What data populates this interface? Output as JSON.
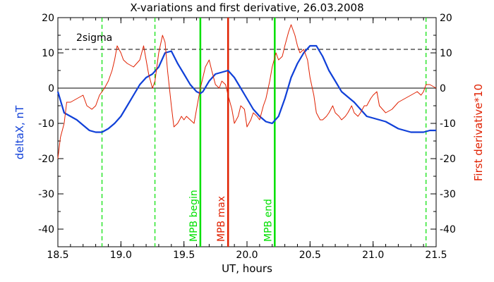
{
  "chart_data": {
    "type": "line",
    "title": "X-variations and first derivative, 26.03.2008",
    "xlabel": "UT, hours",
    "ylabel_left": "deltaX, nT",
    "ylabel_right": "First derivative*10",
    "xlim": [
      18.5,
      21.5
    ],
    "ylim_left": [
      -45,
      20
    ],
    "ylim_right": [
      -45,
      20
    ],
    "x_ticks": [
      "18.5",
      "19.0",
      "19.5",
      "20.0",
      "20.5",
      "21.0",
      "21.5"
    ],
    "y_ticks_left": [
      "20",
      "10",
      "0",
      "-10",
      "-20",
      "-30",
      "-40"
    ],
    "y_ticks_right": [
      "20",
      "10",
      "0",
      "-10",
      "-20",
      "-30",
      "-40"
    ],
    "x_tick_values": [
      18.5,
      19.0,
      19.5,
      20.0,
      20.5,
      21.0,
      21.5
    ],
    "y_tick_values": [
      20,
      10,
      0,
      -10,
      -20,
      -30,
      -40
    ],
    "colors": {
      "deltaX": "#1040d8",
      "derivative": "#e02000",
      "mpb_begin_end": "#00e000",
      "mpb_max": "#e02000",
      "dashed_green": "#00e000",
      "axes": "#000000"
    },
    "threshold": {
      "label": "2sigma",
      "value": 11
    },
    "zero_line": 0,
    "series": [
      {
        "key": "deltaX",
        "x": [
          18.5,
          18.55,
          18.6,
          18.65,
          18.7,
          18.75,
          18.8,
          18.85,
          18.9,
          18.95,
          19.0,
          19.05,
          19.1,
          19.15,
          19.2,
          19.25,
          19.3,
          19.35,
          19.4,
          19.45,
          19.5,
          19.55,
          19.6,
          19.63,
          19.65,
          19.7,
          19.75,
          19.8,
          19.85,
          19.9,
          19.95,
          20.0,
          20.05,
          20.1,
          20.15,
          20.2,
          20.25,
          20.3,
          20.35,
          20.4,
          20.45,
          20.5,
          20.55,
          20.6,
          20.65,
          20.7,
          20.75,
          20.8,
          20.85,
          20.9,
          20.95,
          21.0,
          21.05,
          21.1,
          21.15,
          21.2,
          21.25,
          21.3,
          21.35,
          21.4,
          21.45,
          21.5
        ],
        "y": [
          -1,
          -7,
          -8,
          -9,
          -10.5,
          -12,
          -12.5,
          -12.5,
          -11.5,
          -10,
          -8,
          -5,
          -2,
          1,
          3,
          4,
          6,
          10,
          10.5,
          7,
          4,
          1,
          -1,
          -1.5,
          -1,
          2,
          4,
          4.5,
          5,
          3,
          0,
          -3,
          -6,
          -8,
          -9.5,
          -10,
          -8,
          -3,
          3,
          7,
          10,
          12,
          12,
          9,
          5,
          2,
          -1,
          -2.5,
          -4,
          -6,
          -8,
          -8.5,
          -9,
          -9.5,
          -10.5,
          -11.5,
          -12,
          -12.5,
          -12.5,
          -12.5,
          -12,
          -12
        ]
      },
      {
        "key": "derivative",
        "x": [
          18.5,
          18.52,
          18.55,
          18.57,
          18.6,
          18.65,
          18.7,
          18.73,
          18.77,
          18.8,
          18.83,
          18.87,
          18.9,
          18.93,
          18.95,
          18.97,
          19.0,
          19.02,
          19.05,
          19.1,
          19.15,
          19.18,
          19.22,
          19.25,
          19.27,
          19.3,
          19.33,
          19.35,
          19.37,
          19.4,
          19.42,
          19.45,
          19.48,
          19.5,
          19.52,
          19.55,
          19.58,
          19.6,
          19.63,
          19.65,
          19.67,
          19.7,
          19.72,
          19.75,
          19.78,
          19.8,
          19.83,
          19.85,
          19.88,
          19.9,
          19.93,
          19.95,
          19.98,
          20.0,
          20.03,
          20.05,
          20.08,
          20.1,
          20.13,
          20.15,
          20.18,
          20.2,
          20.23,
          20.25,
          20.28,
          20.3,
          20.33,
          20.35,
          20.38,
          20.4,
          20.42,
          20.45,
          20.48,
          20.5,
          20.53,
          20.55,
          20.58,
          20.6,
          20.63,
          20.65,
          20.68,
          20.7,
          20.73,
          20.75,
          20.78,
          20.8,
          20.83,
          20.85,
          20.88,
          20.9,
          20.93,
          20.95,
          20.98,
          21.0,
          21.03,
          21.05,
          21.1,
          21.15,
          21.2,
          21.25,
          21.3,
          21.35,
          21.38,
          21.4,
          21.42,
          21.45,
          21.5
        ],
        "y": [
          -20,
          -14,
          -10,
          -4,
          -4,
          -3,
          -2,
          -5,
          -6,
          -5,
          -2,
          0,
          2,
          5,
          8,
          12,
          10,
          8,
          7,
          6,
          8,
          12,
          4,
          0,
          2,
          10,
          15,
          13,
          5,
          -5,
          -11,
          -10,
          -8,
          -9,
          -8,
          -9,
          -10,
          -6,
          0,
          3,
          6,
          8,
          5,
          1,
          0,
          2,
          1,
          -2,
          -6,
          -10,
          -8,
          -5,
          -6,
          -11,
          -9,
          -7,
          -8,
          -9,
          -5,
          -3,
          2,
          6,
          10,
          8,
          9,
          12,
          16,
          18,
          15,
          12,
          10,
          11,
          8,
          3,
          -2,
          -7,
          -9,
          -9,
          -8,
          -7,
          -5,
          -7,
          -8,
          -9,
          -8,
          -7,
          -5,
          -7,
          -8,
          -7,
          -5,
          -5,
          -3,
          -2,
          -1,
          -5,
          -7,
          -6,
          -4,
          -3,
          -2,
          -1,
          -2,
          -1,
          1,
          1,
          0
        ]
      }
    ],
    "vertical_markers": [
      {
        "x": 18.85,
        "style": "dashed",
        "color": "#00e000",
        "label": ""
      },
      {
        "x": 19.27,
        "style": "dashed",
        "color": "#00e000",
        "label": ""
      },
      {
        "x": 19.63,
        "style": "solid",
        "color": "#00e000",
        "label": "MPB begin"
      },
      {
        "x": 19.85,
        "style": "solid",
        "color": "#e02000",
        "label": "MPB max"
      },
      {
        "x": 20.22,
        "style": "solid",
        "color": "#00e000",
        "label": "MPB end"
      },
      {
        "x": 21.42,
        "style": "dashed",
        "color": "#00e000",
        "label": ""
      }
    ]
  }
}
